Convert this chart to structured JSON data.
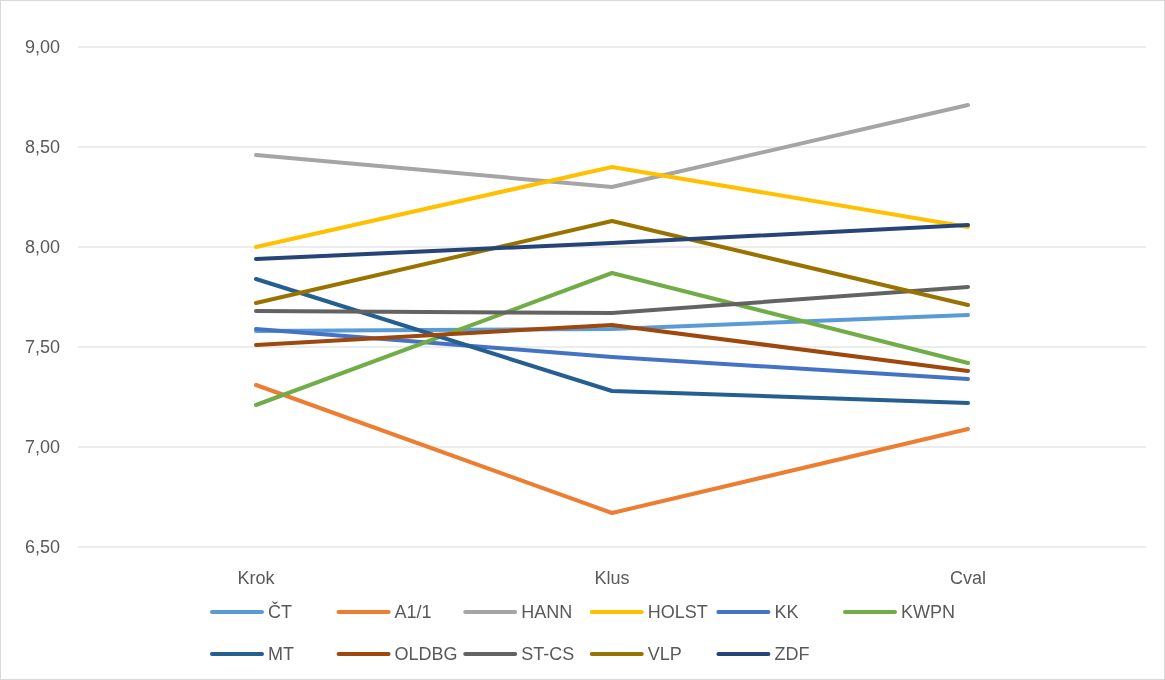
{
  "chart_data": {
    "type": "line",
    "categories": [
      "Krok",
      "Klus",
      "Cval"
    ],
    "series": [
      {
        "name": "ČT",
        "color": "#5b9bd5",
        "values": [
          7.58,
          7.59,
          7.66
        ]
      },
      {
        "name": "A1/1",
        "color": "#ed7d31",
        "values": [
          7.31,
          6.67,
          7.09
        ]
      },
      {
        "name": "HANN",
        "color": "#a5a5a5",
        "values": [
          8.46,
          8.3,
          8.71
        ]
      },
      {
        "name": "HOLST",
        "color": "#ffc000",
        "values": [
          8.0,
          8.4,
          8.1
        ]
      },
      {
        "name": "KK",
        "color": "#4472c4",
        "values": [
          7.59,
          7.45,
          7.34
        ]
      },
      {
        "name": "KWPN",
        "color": "#70ad47",
        "values": [
          7.21,
          7.87,
          7.42
        ]
      },
      {
        "name": "MT",
        "color": "#255e91",
        "values": [
          7.84,
          7.28,
          7.22
        ]
      },
      {
        "name": "OLDBG",
        "color": "#9e480e",
        "values": [
          7.51,
          7.61,
          7.38
        ]
      },
      {
        "name": "ST-CS",
        "color": "#636363",
        "values": [
          7.68,
          7.67,
          7.8
        ]
      },
      {
        "name": "VLP",
        "color": "#997300",
        "values": [
          7.72,
          8.13,
          7.71
        ]
      },
      {
        "name": "ZDF",
        "color": "#264478",
        "values": [
          7.94,
          8.02,
          8.11
        ]
      }
    ],
    "ylim": [
      6.5,
      9.0
    ],
    "yticks": [
      {
        "value": 6.5,
        "label": "6,50"
      },
      {
        "value": 7.0,
        "label": "7,00"
      },
      {
        "value": 7.5,
        "label": "7,50"
      },
      {
        "value": 8.0,
        "label": "8,00"
      },
      {
        "value": 8.5,
        "label": "8,50"
      },
      {
        "value": 9.0,
        "label": "9,00"
      }
    ],
    "grid": "y",
    "legend": "bottom",
    "marker": "none",
    "line_style": "solid"
  }
}
